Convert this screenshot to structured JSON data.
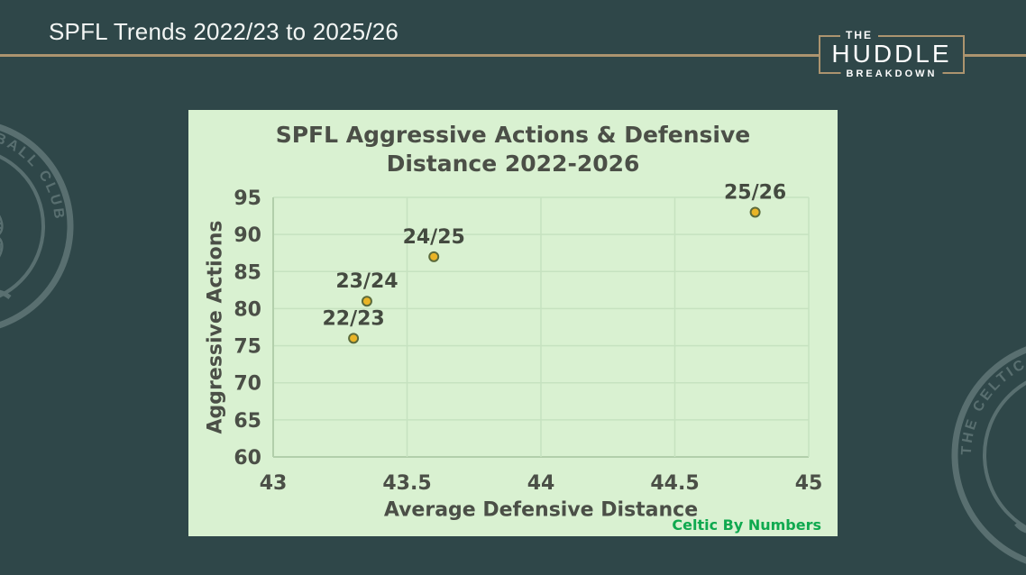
{
  "header": {
    "title": "SPFL Trends 2022/23 to 2025/26",
    "rule_color": "#ac946f",
    "logo": {
      "top": "THE",
      "middle": "HUDDLE",
      "bottom": "BREAKDOWN"
    }
  },
  "watermark": {
    "text": "THE CELTIC FOOTBALL CLUB"
  },
  "colors": {
    "background": "#2f4749",
    "accent_gold": "#ac946f",
    "panel_background": "#d9f1d1",
    "header_text": "#f2f5f3"
  },
  "chart_data": {
    "type": "scatter",
    "title": "SPFL Aggressive Actions & Defensive Distance 2022-2026",
    "title_lines": [
      "SPFL Aggressive Actions  & Defensive",
      "Distance 2022-2026"
    ],
    "xlabel": "Average Defensive Distance",
    "ylabel": "Aggressive Actions",
    "xlim": [
      43,
      45
    ],
    "ylim": [
      60,
      95
    ],
    "xticks": [
      43,
      43.5,
      44,
      44.5,
      45
    ],
    "yticks": [
      60,
      65,
      70,
      75,
      80,
      85,
      90,
      95
    ],
    "grid": true,
    "points": [
      {
        "label": "22/23",
        "x": 43.3,
        "y": 76
      },
      {
        "label": "23/24",
        "x": 43.35,
        "y": 81
      },
      {
        "label": "24/25",
        "x": 43.6,
        "y": 87
      },
      {
        "label": "25/26",
        "x": 44.8,
        "y": 93
      }
    ],
    "credit": "Celtic By Numbers",
    "colors": {
      "grid": "#c6e2c0",
      "axis": "#b2cfab",
      "text": "#4b4f47",
      "marker_fill": "#e9b427",
      "marker_stroke": "#5c6b3c",
      "credit": "#0fa94f"
    }
  }
}
